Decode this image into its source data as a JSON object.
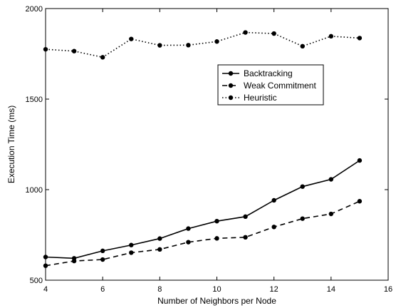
{
  "chart_data": {
    "type": "line",
    "title": "",
    "xlabel": "Number of Neighbors per Node",
    "ylabel": "Execution Time (ms)",
    "xlim": [
      4,
      16
    ],
    "ylim": [
      500,
      2000
    ],
    "xticks": [
      4,
      6,
      8,
      10,
      12,
      14,
      16
    ],
    "yticks": [
      500,
      1000,
      1500,
      2000
    ],
    "grid": false,
    "legend_position": "top-right",
    "x": [
      4,
      5,
      6,
      7,
      8,
      9,
      10,
      11,
      12,
      13,
      14,
      15
    ],
    "series": [
      {
        "name": "Backtracking",
        "style": "solid",
        "values": [
          628,
          621,
          662,
          694,
          730,
          785,
          826,
          851,
          941,
          1017,
          1057,
          1161
        ]
      },
      {
        "name": "Weak Commitment",
        "style": "dashed",
        "values": [
          580,
          606,
          614,
          652,
          670,
          710,
          731,
          737,
          794,
          840,
          866,
          936
        ]
      },
      {
        "name": "Heuristic",
        "style": "dotted",
        "values": [
          1775,
          1765,
          1731,
          1832,
          1797,
          1798,
          1818,
          1868,
          1862,
          1792,
          1847,
          1837
        ]
      }
    ]
  }
}
